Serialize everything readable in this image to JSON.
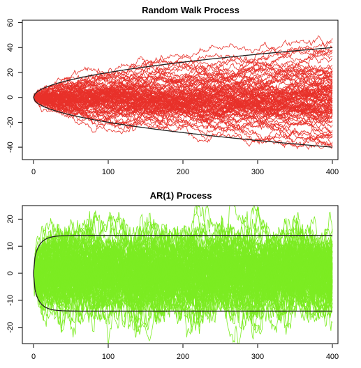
{
  "chart_data": [
    {
      "type": "line",
      "title": "Random Walk Process",
      "xlabel": "",
      "ylabel": "",
      "xlim": [
        0,
        400
      ],
      "ylim": [
        -50,
        62
      ],
      "xticks": [
        0,
        100,
        200,
        300,
        400
      ],
      "yticks": [
        -40,
        -20,
        0,
        20,
        40,
        60
      ],
      "x_tick_labels": [
        "0",
        "100",
        "200",
        "300",
        "400"
      ],
      "y_tick_labels": [
        "-40",
        "-20",
        "0",
        "20",
        "40",
        "60"
      ],
      "n_steps": 400,
      "n_series": 100,
      "series_color": "#e8312a",
      "envelope": {
        "formula": "±2·sqrt(t)",
        "value_at_t400": 40,
        "color": "#222222"
      },
      "observed_range": {
        "max_near_t400": 58,
        "min_near_t400": -48
      },
      "grid": false,
      "legend": "none"
    },
    {
      "type": "line",
      "title": "AR(1) Process",
      "xlabel": "",
      "ylabel": "",
      "xlim": [
        0,
        400
      ],
      "ylim": [
        -26,
        25
      ],
      "xticks": [
        0,
        100,
        200,
        300,
        400
      ],
      "yticks": [
        -20,
        -10,
        0,
        10,
        20
      ],
      "x_tick_labels": [
        "0",
        "100",
        "200",
        "300",
        "400"
      ],
      "y_tick_labels": [
        "-20",
        "-10",
        "0",
        "10",
        "20"
      ],
      "n_steps": 400,
      "n_series": 100,
      "series_color": "#7cec22",
      "envelope": {
        "formula": "±2·sd(AR(1)) stationary",
        "asymptote": 14,
        "color": "#222222"
      },
      "observed_range": {
        "max": 24,
        "min": -24
      },
      "grid": false,
      "legend": "none"
    }
  ]
}
